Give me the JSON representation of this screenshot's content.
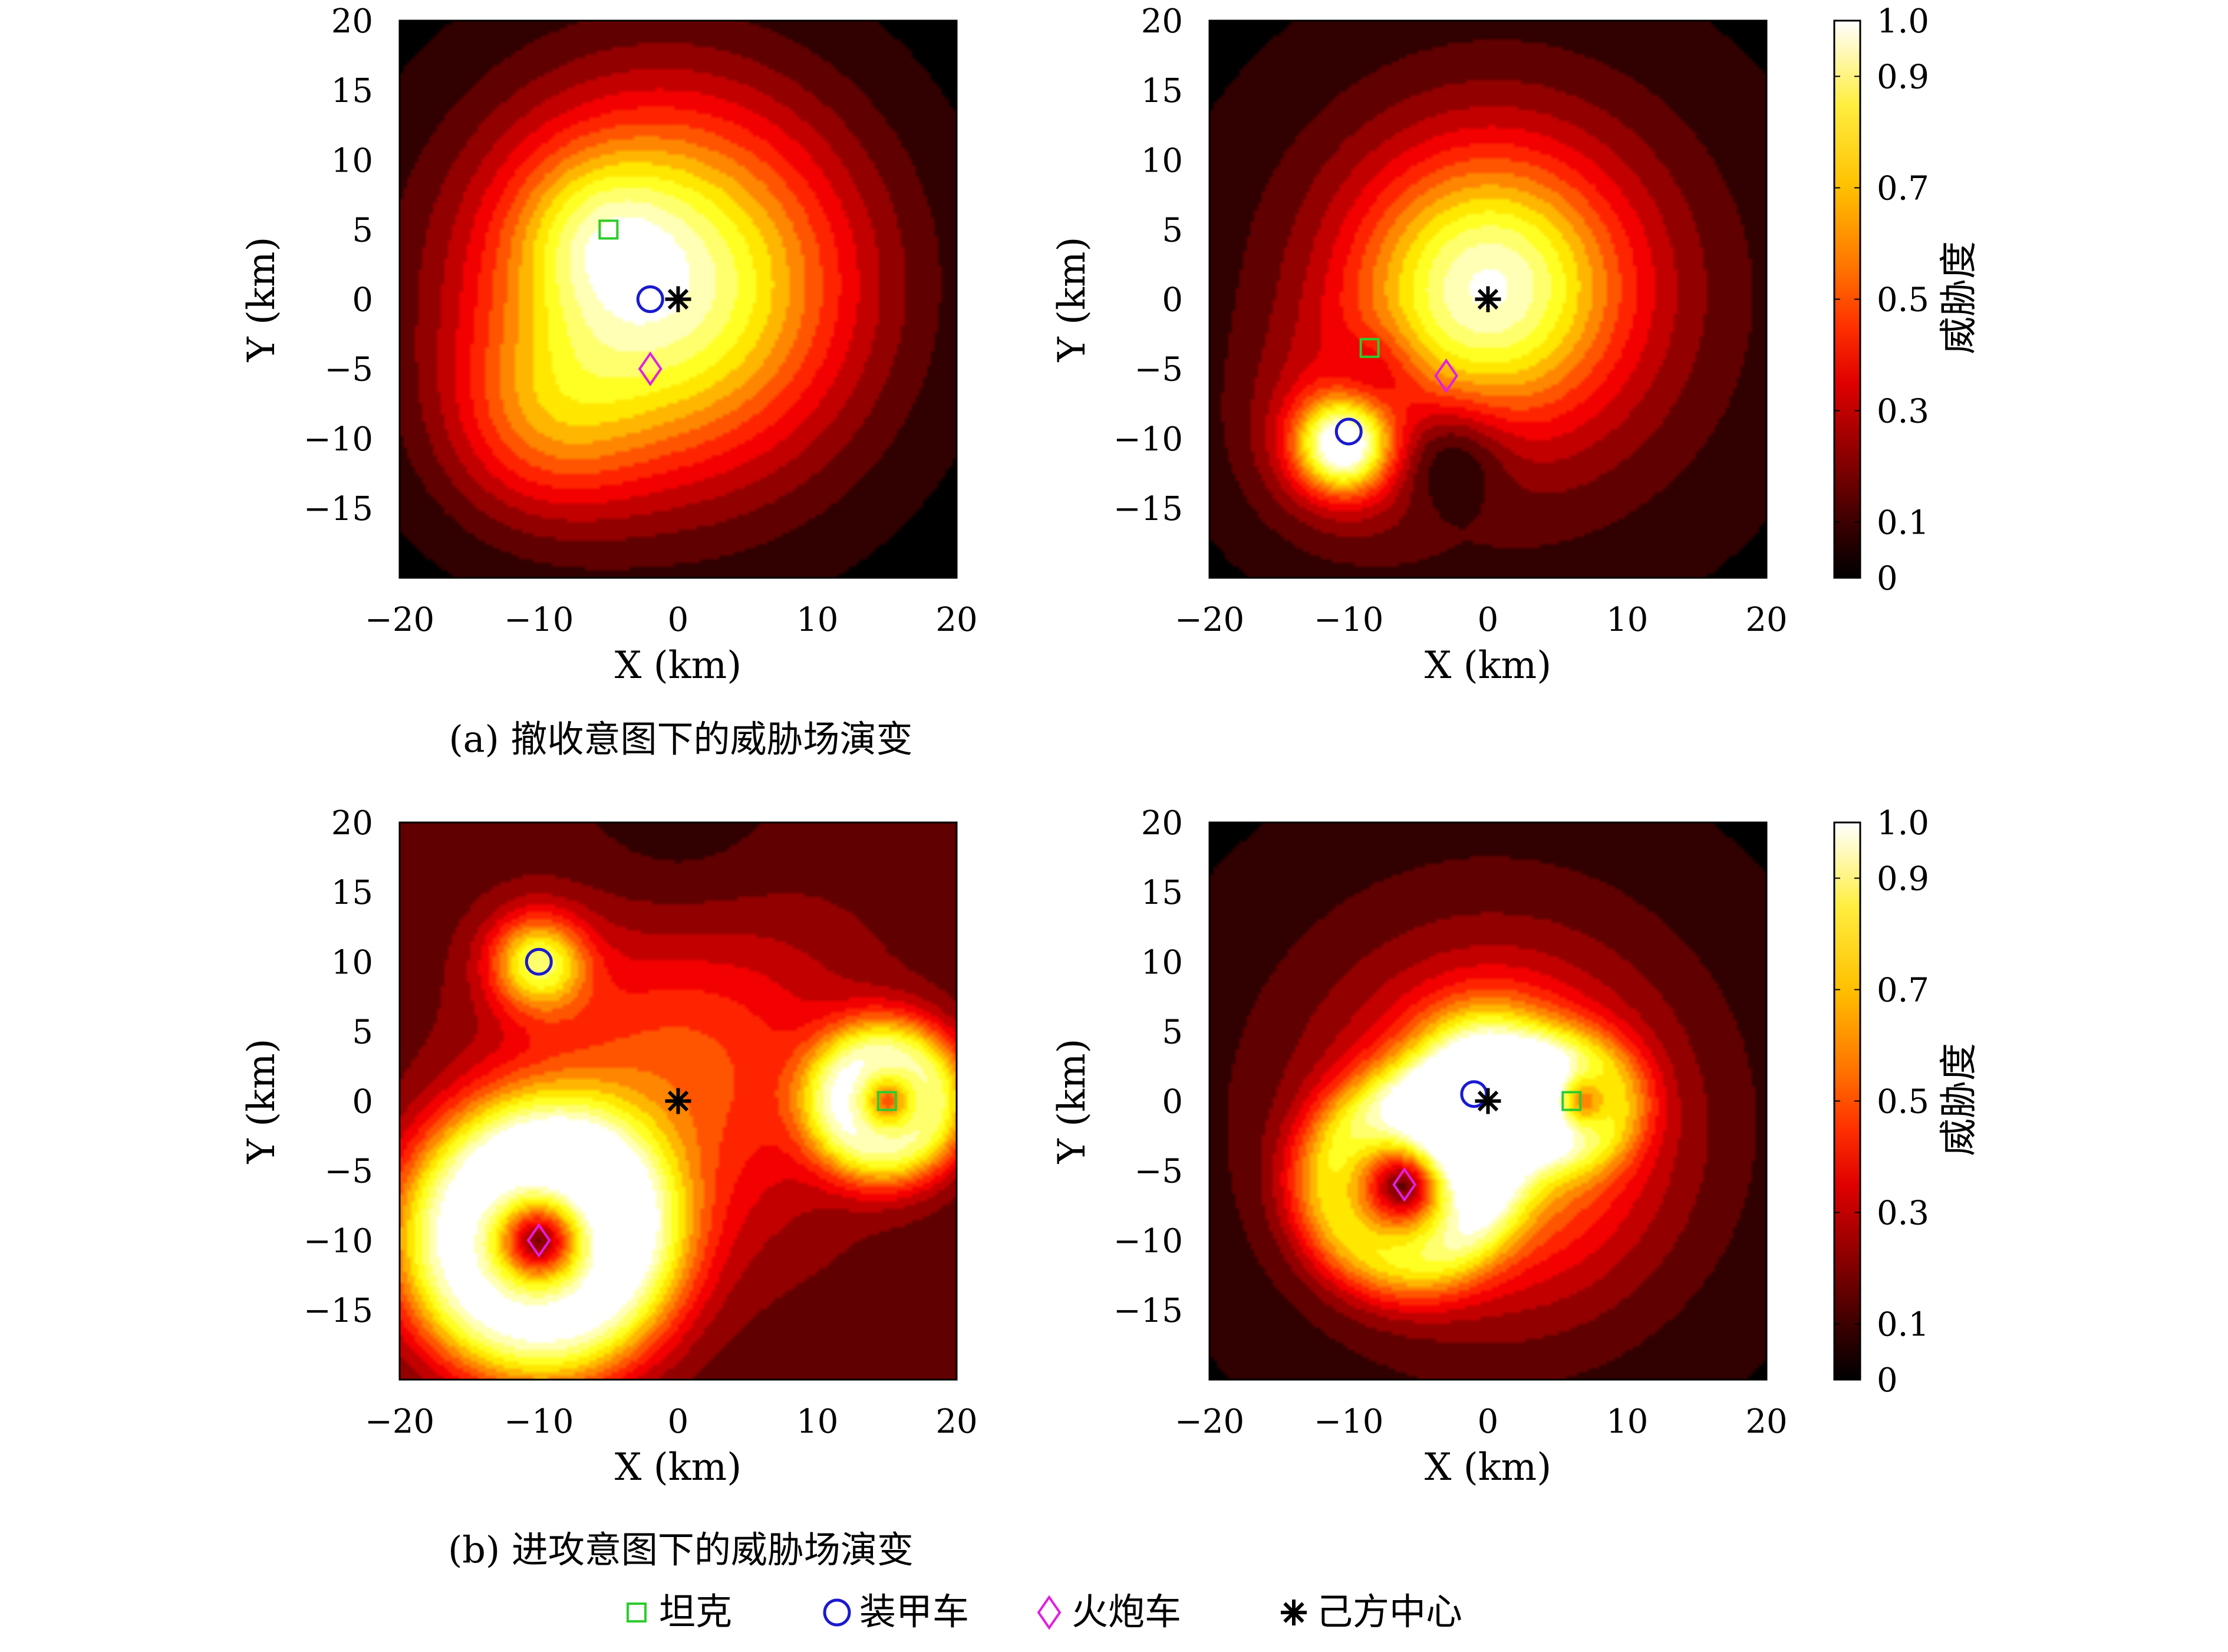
{
  "colors": {
    "tank": "#2ecc2e",
    "armored_vehicle": "#1a1ad0",
    "artillery_vehicle": "#e020e0",
    "own_center": "#000000"
  },
  "colormap": "hot",
  "captions": {
    "a": "(a) 撤收意图下的威胁场演变",
    "b": "(b) 进攻意图下的威胁场演变"
  },
  "legend": [
    {
      "key": "tank",
      "marker": "square",
      "label": "坦克"
    },
    {
      "key": "armored_vehicle",
      "marker": "circle",
      "label": "装甲车"
    },
    {
      "key": "artillery_vehicle",
      "marker": "diamond",
      "label": "火炮车"
    },
    {
      "key": "own_center",
      "marker": "star",
      "label": "己方中心"
    }
  ],
  "colorbars": [
    {
      "label": "威胁度",
      "ticks": [
        "0",
        "0.1",
        "0.3",
        "0.5",
        "0.7",
        "0.9",
        "1.0"
      ],
      "tick_values": [
        0,
        0.1,
        0.3,
        0.5,
        0.7,
        0.9,
        1.0
      ],
      "range": [
        0,
        1
      ]
    },
    {
      "label": "威胁度",
      "ticks": [
        "0",
        "0.1",
        "0.3",
        "0.5",
        "0.7",
        "0.9",
        "1.0"
      ],
      "tick_values": [
        0,
        0.1,
        0.3,
        0.5,
        0.7,
        0.9,
        1.0
      ],
      "range": [
        0,
        1
      ]
    }
  ],
  "chart_data": [
    {
      "type": "heatmap",
      "panel": "a-left",
      "xlabel": "X (km)",
      "ylabel": "Y (km)",
      "xlim": [
        -20,
        20
      ],
      "ylim": [
        -20,
        20
      ],
      "xticks": [
        -20,
        -10,
        0,
        10,
        20
      ],
      "yticks": [
        -15,
        -10,
        -5,
        0,
        5,
        10,
        15,
        20
      ],
      "xtick_labels": [
        "−20",
        "−10",
        "0",
        "10",
        "20"
      ],
      "ytick_labels": [
        "−15",
        "−10",
        "−5",
        "0",
        "5",
        "10",
        "15",
        "20"
      ],
      "markers": [
        {
          "key": "tank",
          "x": -5,
          "y": 5
        },
        {
          "key": "armored_vehicle",
          "x": -2,
          "y": 0
        },
        {
          "key": "artillery_vehicle",
          "x": -2,
          "y": -5
        },
        {
          "key": "own_center",
          "x": 0,
          "y": 0
        }
      ]
    },
    {
      "type": "heatmap",
      "panel": "a-right",
      "xlabel": "X (km)",
      "ylabel": "Y (km)",
      "xlim": [
        -20,
        20
      ],
      "ylim": [
        -20,
        20
      ],
      "xticks": [
        -20,
        -10,
        0,
        10,
        20
      ],
      "yticks": [
        -15,
        -10,
        -5,
        0,
        5,
        10,
        15,
        20
      ],
      "xtick_labels": [
        "−20",
        "−10",
        "0",
        "10",
        "20"
      ],
      "ytick_labels": [
        "−15",
        "−10",
        "−5",
        "0",
        "5",
        "10",
        "15",
        "20"
      ],
      "markers": [
        {
          "key": "tank",
          "x": -8.5,
          "y": -3.5
        },
        {
          "key": "armored_vehicle",
          "x": -10,
          "y": -9.5
        },
        {
          "key": "artillery_vehicle",
          "x": -3,
          "y": -5.5
        },
        {
          "key": "own_center",
          "x": 0,
          "y": 0
        }
      ]
    },
    {
      "type": "heatmap",
      "panel": "b-left",
      "xlabel": "X (km)",
      "ylabel": "Y (km)",
      "xlim": [
        -20,
        20
      ],
      "ylim": [
        -20,
        20
      ],
      "xticks": [
        -20,
        -10,
        0,
        10,
        20
      ],
      "yticks": [
        -15,
        -10,
        -5,
        0,
        5,
        10,
        15,
        20
      ],
      "xtick_labels": [
        "−20",
        "−10",
        "0",
        "10",
        "20"
      ],
      "ytick_labels": [
        "−15",
        "−10",
        "−5",
        "0",
        "5",
        "10",
        "15",
        "20"
      ],
      "markers": [
        {
          "key": "tank",
          "x": 15,
          "y": 0
        },
        {
          "key": "armored_vehicle",
          "x": -10,
          "y": 10
        },
        {
          "key": "artillery_vehicle",
          "x": -10,
          "y": -10
        },
        {
          "key": "own_center",
          "x": 0,
          "y": 0
        }
      ]
    },
    {
      "type": "heatmap",
      "panel": "b-right",
      "xlabel": "X (km)",
      "ylabel": "Y (km)",
      "xlim": [
        -20,
        20
      ],
      "ylim": [
        -20,
        20
      ],
      "xticks": [
        -20,
        -10,
        0,
        10,
        20
      ],
      "yticks": [
        -15,
        -10,
        -5,
        0,
        5,
        10,
        15,
        20
      ],
      "xtick_labels": [
        "−20",
        "−10",
        "0",
        "10",
        "20"
      ],
      "ytick_labels": [
        "−15",
        "−10",
        "−5",
        "0",
        "5",
        "10",
        "15",
        "20"
      ],
      "markers": [
        {
          "key": "tank",
          "x": 6,
          "y": 0
        },
        {
          "key": "armored_vehicle",
          "x": -1,
          "y": 0.5
        },
        {
          "key": "artillery_vehicle",
          "x": -6,
          "y": -6
        },
        {
          "key": "own_center",
          "x": 0,
          "y": 0
        }
      ]
    }
  ]
}
